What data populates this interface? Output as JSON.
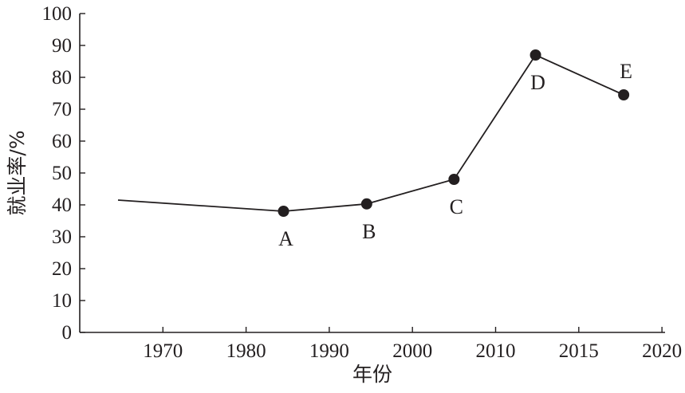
{
  "chart_data": {
    "type": "line",
    "xlabel": "年份",
    "ylabel": "就业率/%",
    "ylim": [
      0,
      100
    ],
    "y_ticks": [
      "0",
      "10",
      "20",
      "30",
      "40",
      "50",
      "60",
      "70",
      "80",
      "90",
      "100"
    ],
    "x_axis_min": 0,
    "x_axis_max": 7,
    "x_ticks": [
      {
        "pos": 1,
        "label": "1970"
      },
      {
        "pos": 2,
        "label": "1980"
      },
      {
        "pos": 3,
        "label": "1990"
      },
      {
        "pos": 4,
        "label": "2000"
      },
      {
        "pos": 5,
        "label": "2010"
      },
      {
        "pos": 6,
        "label": "2015"
      },
      {
        "pos": 7,
        "label": "2020"
      }
    ],
    "grid": false,
    "series": [
      {
        "points": [
          {
            "x": 0.46,
            "y": 41.5,
            "label": ""
          },
          {
            "x": 2.45,
            "y": 38,
            "label": "A"
          },
          {
            "x": 3.45,
            "y": 40.3,
            "label": "B"
          },
          {
            "x": 4.5,
            "y": 48,
            "label": "C"
          },
          {
            "x": 5.48,
            "y": 87,
            "label": "D"
          },
          {
            "x": 6.54,
            "y": 74.5,
            "label": "E"
          }
        ]
      }
    ]
  }
}
